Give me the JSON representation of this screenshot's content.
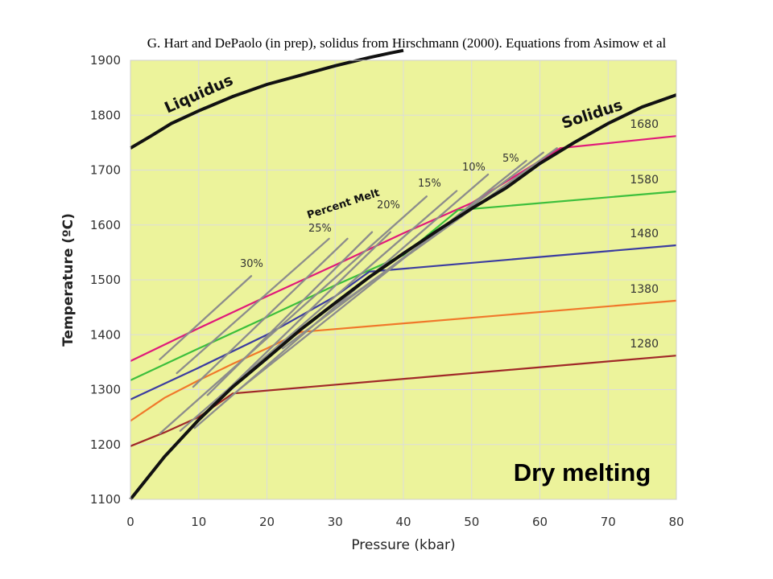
{
  "caption": "G. Hart and DePaolo (in prep), solidus from Hirschmann (2000). Equations from Asimow et al",
  "colors": {
    "plot_background": "#ecf39b",
    "liquidus": "#111111",
    "solidus": "#111111",
    "percent_melt": "#8c8c8c",
    "s1680": "#e0197a",
    "s1580": "#3cbf3c",
    "s1480": "#3b3ca0",
    "s1380": "#f0782a",
    "s1280": "#a02828"
  },
  "chart_data": {
    "type": "line",
    "title": "Dry melting",
    "xlabel": "Pressure (kbar)",
    "ylabel": "Temperature (ºC)",
    "xlim": [
      0,
      80
    ],
    "ylim": [
      1100,
      1900
    ],
    "x_ticks": [
      "0",
      "10",
      "20",
      "30",
      "40",
      "50",
      "60",
      "70",
      "80"
    ],
    "y_ticks": [
      "1100",
      "1200",
      "1300",
      "1400",
      "1500",
      "1600",
      "1700",
      "1800",
      "1900"
    ],
    "grid": true,
    "curve_labels": {
      "liquidus": "Liquidus",
      "solidus": "Solidus",
      "percent_melt": "Percent Melt"
    },
    "liquidus": {
      "x": [
        0,
        3,
        6,
        10,
        15,
        20,
        25,
        30,
        35,
        38,
        40
      ],
      "y": [
        1740,
        1762,
        1785,
        1808,
        1834,
        1856,
        1873,
        1890,
        1905,
        1913,
        1918
      ]
    },
    "solidus": {
      "x": [
        0,
        5,
        10,
        15,
        20,
        25,
        30,
        35,
        40,
        45,
        50,
        55,
        60,
        65,
        70,
        75,
        80
      ],
      "y": [
        1100,
        1178,
        1245,
        1305,
        1357,
        1410,
        1458,
        1505,
        1548,
        1590,
        1630,
        1667,
        1712,
        1750,
        1785,
        1815,
        1837
      ]
    },
    "series": [
      {
        "name": "1680",
        "color": "#e0197a",
        "x": [
          0,
          10,
          20,
          30,
          40,
          50,
          63,
          80
        ],
        "y": [
          1352,
          1412,
          1470,
          1527,
          1585,
          1640,
          1740,
          1762
        ]
      },
      {
        "name": "1580",
        "color": "#3cbf3c",
        "x": [
          0,
          10,
          20,
          30,
          40,
          48,
          80
        ],
        "y": [
          1317,
          1375,
          1432,
          1490,
          1545,
          1627,
          1661
        ]
      },
      {
        "name": "1480",
        "color": "#3b3ca0",
        "x": [
          0,
          10,
          20,
          30,
          35,
          80
        ],
        "y": [
          1282,
          1340,
          1400,
          1470,
          1515,
          1563
        ]
      },
      {
        "name": "1380",
        "color": "#f0782a",
        "x": [
          0,
          5,
          10,
          15,
          20,
          25,
          80
        ],
        "y": [
          1243,
          1285,
          1317,
          1347,
          1375,
          1405,
          1462
        ]
      },
      {
        "name": "1280",
        "color": "#a02828",
        "x": [
          0,
          5,
          10,
          15,
          80
        ],
        "y": [
          1197,
          1222,
          1250,
          1293,
          1362
        ]
      }
    ],
    "percent_melt_lines": [
      {
        "label": "30%",
        "x": [
          4.3,
          17.7
        ],
        "y": [
          1355,
          1507
        ]
      },
      {
        "label": "25%",
        "x": [
          6.8,
          29.1
        ],
        "y": [
          1330,
          1575
        ]
      },
      {
        "label": "",
        "x": [
          9.2,
          31.8
        ],
        "y": [
          1305,
          1575
        ]
      },
      {
        "label": "20%",
        "x": [
          11.3,
          35.4
        ],
        "y": [
          1290,
          1587
        ]
      },
      {
        "label": "",
        "x": [
          11.8,
          38.1
        ],
        "y": [
          1270,
          1587
        ]
      },
      {
        "label": "15%",
        "x": [
          4.3,
          43.4
        ],
        "y": [
          1220,
          1652
        ]
      },
      {
        "label": "",
        "x": [
          7.3,
          47.8
        ],
        "y": [
          1225,
          1662
        ]
      },
      {
        "label": "10%",
        "x": [
          9.4,
          52.4
        ],
        "y": [
          1230,
          1692
        ]
      },
      {
        "label": "",
        "x": [
          15.9,
          58.0
        ],
        "y": [
          1300,
          1717
        ]
      },
      {
        "label": "5%",
        "x": [
          22.3,
          60.5
        ],
        "y": [
          1375,
          1732
        ]
      },
      {
        "label": "",
        "x": [
          30.6,
          62.5
        ],
        "y": [
          1455,
          1740
        ]
      }
    ]
  }
}
